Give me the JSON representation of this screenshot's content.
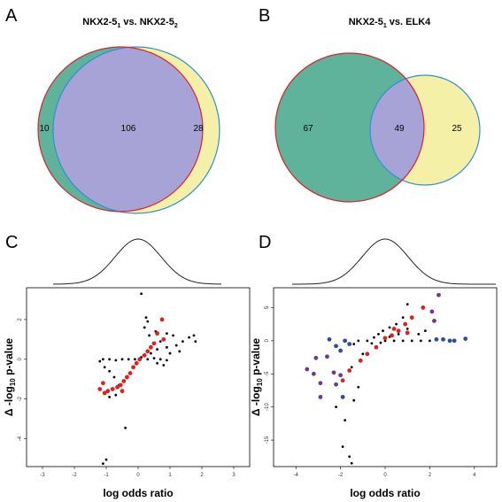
{
  "figure": {
    "panels": {
      "A": "A",
      "B": "B",
      "C": "C",
      "D": "D"
    }
  },
  "venn_A": {
    "title_parts": [
      "NKX2-5",
      "1",
      " vs. NKX2-5",
      "2"
    ],
    "left_only": "10",
    "overlap": "106",
    "right_only": "28",
    "colors": {
      "left_fill": "#5fb39a",
      "right_fill": "#f4f0a8",
      "overlap_fill": "#a8a3d6",
      "left_stroke": "#e0202a",
      "right_stroke": "#2f8fd8"
    }
  },
  "venn_B": {
    "title_parts": [
      "NKX2-5",
      "1",
      " vs. ELK4"
    ],
    "left_only": "67",
    "overlap": "49",
    "right_only": "25",
    "colors": {
      "left_fill": "#5fb39a",
      "right_fill": "#f4f0a8",
      "overlap_fill": "#a8a3d6",
      "left_stroke": "#e0202a",
      "right_stroke": "#2f8fd8"
    }
  },
  "chart_data": [
    {
      "panel": "C",
      "type": "scatter",
      "xlabel": "log odds ratio",
      "ylabel_parts": [
        "Δ -log",
        "10",
        " p-value"
      ],
      "xlim": [
        -3.5,
        3.5
      ],
      "ylim": [
        -5.4,
        3.6
      ],
      "x_ticks": [
        -3,
        -2,
        -1,
        0,
        1,
        2,
        3
      ],
      "y_ticks": [
        -4,
        -2,
        0,
        2
      ],
      "density_curve": "normal, centered at 0",
      "series": [
        {
          "color": "#000000",
          "points": [
            [
              0.1,
              3.3
            ],
            [
              0.25,
              2.1
            ],
            [
              0.3,
              1.9
            ],
            [
              0.2,
              1.6
            ],
            [
              0.55,
              1.4
            ],
            [
              0.9,
              1.3
            ],
            [
              1.1,
              1.2
            ],
            [
              1.4,
              0.9
            ],
            [
              1.6,
              1.1
            ],
            [
              1.75,
              1.2
            ],
            [
              1.8,
              0.9
            ],
            [
              1.2,
              0.7
            ],
            [
              0.9,
              0.6
            ],
            [
              0.6,
              0.5
            ],
            [
              0.4,
              0.3
            ],
            [
              0.2,
              0.2
            ],
            [
              0.1,
              0.1
            ],
            [
              0.3,
              0.0
            ],
            [
              0.5,
              0.05
            ],
            [
              0.7,
              0.0
            ],
            [
              0.9,
              -0.05
            ],
            [
              -0.1,
              0.0
            ],
            [
              -0.3,
              0.0
            ],
            [
              -0.5,
              0.0
            ],
            [
              -0.7,
              -0.05
            ],
            [
              -0.9,
              0.0
            ],
            [
              -1.1,
              0.0
            ],
            [
              -1.2,
              -0.1
            ],
            [
              -1.05,
              -0.4
            ],
            [
              -0.9,
              -0.6
            ],
            [
              -0.75,
              -0.9
            ],
            [
              -0.6,
              -1.3
            ],
            [
              -0.5,
              -1.6
            ],
            [
              -0.7,
              -1.8
            ],
            [
              -0.9,
              -1.9
            ],
            [
              -0.4,
              -3.45
            ],
            [
              -1.0,
              -5.05
            ],
            [
              -1.1,
              -5.25
            ],
            [
              0.6,
              -0.2
            ],
            [
              0.8,
              -0.3
            ],
            [
              1.0,
              0.3
            ],
            [
              1.3,
              0.4
            ],
            [
              0.7,
              0.9
            ],
            [
              0.35,
              1.2
            ]
          ]
        },
        {
          "color": "#e02020",
          "points": [
            [
              0.75,
              2.0
            ],
            [
              0.6,
              1.3
            ],
            [
              0.8,
              1.0
            ],
            [
              0.5,
              0.8
            ],
            [
              0.4,
              0.6
            ],
            [
              0.3,
              0.4
            ],
            [
              0.2,
              0.2
            ],
            [
              0.05,
              0.0
            ],
            [
              -0.05,
              -0.2
            ],
            [
              -0.15,
              -0.4
            ],
            [
              -0.25,
              -0.7
            ],
            [
              -0.35,
              -0.9
            ],
            [
              -0.45,
              -1.1
            ],
            [
              -0.55,
              -1.3
            ],
            [
              -0.65,
              -1.4
            ],
            [
              -0.8,
              -1.5
            ],
            [
              -0.95,
              -1.6
            ],
            [
              -1.1,
              -1.2
            ],
            [
              -1.2,
              -1.5
            ],
            [
              -1.05,
              -1.7
            ],
            [
              -0.5,
              -1.6
            ]
          ]
        }
      ]
    },
    {
      "panel": "D",
      "type": "scatter",
      "xlabel": "log odds ratio",
      "ylabel_parts": [
        "Δ -log",
        "10",
        " p-value"
      ],
      "xlim": [
        -5,
        5
      ],
      "ylim": [
        -19,
        8
      ],
      "x_ticks": [
        -4,
        -2,
        0,
        2,
        4
      ],
      "y_ticks": [
        -15,
        -10,
        -5,
        0,
        5
      ],
      "density_curve": "normal, centered at 0",
      "series": [
        {
          "color": "#000000",
          "points": [
            [
              1.0,
              5.5
            ],
            [
              0.8,
              3.5
            ],
            [
              0.5,
              2.5
            ],
            [
              0.2,
              2.0
            ],
            [
              -0.1,
              1.5
            ],
            [
              -0.3,
              1.0
            ],
            [
              -0.5,
              0.5
            ],
            [
              -0.8,
              0.0
            ],
            [
              -1.2,
              0.0
            ],
            [
              -0.6,
              -0.4
            ],
            [
              0.0,
              0.0
            ],
            [
              0.4,
              0.0
            ],
            [
              0.8,
              0.0
            ],
            [
              1.2,
              0.0
            ],
            [
              1.6,
              0.0
            ],
            [
              2.0,
              0.0
            ],
            [
              1.5,
              1.0
            ],
            [
              1.8,
              1.5
            ],
            [
              1.0,
              1.8
            ],
            [
              0.6,
              1.0
            ],
            [
              -1.4,
              -0.5
            ],
            [
              -1.0,
              -2.0
            ],
            [
              -1.5,
              -4.0
            ],
            [
              -1.2,
              -7.0
            ],
            [
              -1.4,
              -9.0
            ],
            [
              -2.2,
              -10.0
            ],
            [
              -1.8,
              -12.0
            ],
            [
              -1.9,
              -16.0
            ],
            [
              -1.6,
              -17.5
            ],
            [
              -1.5,
              -18.5
            ],
            [
              0.2,
              0.6
            ],
            [
              -0.2,
              -0.3
            ]
          ]
        },
        {
          "color": "#e02020",
          "points": [
            [
              1.7,
              5.0
            ],
            [
              1.2,
              3.5
            ],
            [
              0.9,
              2.5
            ],
            [
              0.6,
              1.5
            ],
            [
              0.3,
              0.8
            ],
            [
              0.0,
              0.4
            ],
            [
              -0.4,
              -1.0
            ],
            [
              -0.8,
              -2.0
            ],
            [
              -1.1,
              -3.0
            ],
            [
              -1.6,
              -4.5
            ],
            [
              -1.9,
              -6.0
            ],
            [
              1.0,
              1.2
            ],
            [
              0.4,
              1.8
            ]
          ]
        },
        {
          "color": "#6a3b8c",
          "points": [
            [
              2.4,
              6.9
            ],
            [
              2.1,
              4.4
            ],
            [
              2.2,
              3.0
            ],
            [
              -2.6,
              -2.4
            ],
            [
              -3.1,
              -2.6
            ],
            [
              -3.5,
              -4.3
            ],
            [
              -3.2,
              -5.0
            ],
            [
              -2.9,
              -6.4
            ],
            [
              -2.3,
              -4.8
            ],
            [
              -2.2,
              -6.6
            ],
            [
              -2.9,
              -8.5
            ],
            [
              -2.0,
              -5.2
            ]
          ]
        },
        {
          "color": "#2f4aa0",
          "points": [
            [
              -2.5,
              0.2
            ],
            [
              -2.2,
              -0.8
            ],
            [
              -2.0,
              -1.5
            ],
            [
              -1.8,
              0.0
            ],
            [
              -1.6,
              -0.5
            ],
            [
              2.3,
              0.2
            ],
            [
              2.6,
              0.2
            ],
            [
              2.9,
              0.0
            ],
            [
              3.1,
              0.0
            ],
            [
              3.6,
              0.3
            ],
            [
              -1.9,
              -8.5
            ]
          ]
        }
      ]
    }
  ]
}
